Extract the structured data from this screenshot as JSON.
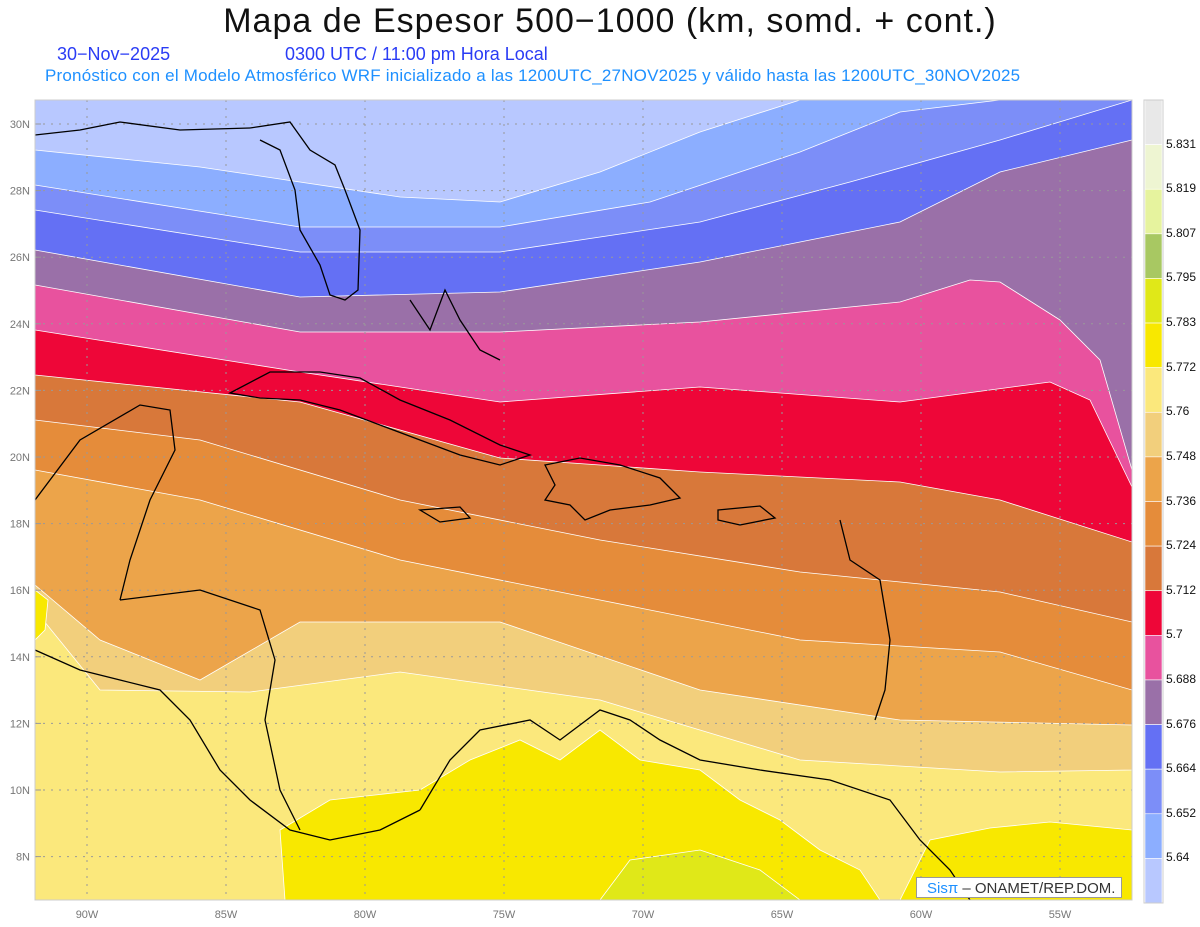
{
  "header": {
    "title": "Mapa de Espesor 500−1000 (km, somd. + cont.)",
    "date": "30−Nov−2025",
    "time": "0300 UTC / 11:00 pm Hora Local",
    "subtitle": "Pronóstico con el Modelo Atmosférico WRF inicializado a las 1200UTC_27NOV2025 y válido hasta las  1200UTC_30NOV2025"
  },
  "axes": {
    "lat_ticks": [
      {
        "v": 30,
        "label": "30N"
      },
      {
        "v": 28,
        "label": "28N"
      },
      {
        "v": 26,
        "label": "26N"
      },
      {
        "v": 24,
        "label": "24N"
      },
      {
        "v": 22,
        "label": "22N"
      },
      {
        "v": 20,
        "label": "20N"
      },
      {
        "v": 18,
        "label": "18N"
      },
      {
        "v": 16,
        "label": "16N"
      },
      {
        "v": 14,
        "label": "14N"
      },
      {
        "v": 12,
        "label": "12N"
      },
      {
        "v": 10,
        "label": "10N"
      },
      {
        "v": 8,
        "label": "8N"
      }
    ],
    "lon_ticks": [
      {
        "v": -90,
        "label": "90W"
      },
      {
        "v": -85,
        "label": "85W"
      },
      {
        "v": -80,
        "label": "80W"
      },
      {
        "v": -75,
        "label": "75W"
      },
      {
        "v": -70,
        "label": "70W"
      },
      {
        "v": -65,
        "label": "65W"
      },
      {
        "v": -60,
        "label": "60W"
      },
      {
        "v": -55,
        "label": "55W"
      }
    ]
  },
  "colorbar": {
    "labels": [
      "5.831",
      "5.819",
      "5.807",
      "5.795",
      "5.783",
      "5.772",
      "5.76",
      "5.748",
      "5.736",
      "5.724",
      "5.712",
      "5.7",
      "5.688",
      "5.676",
      "5.664",
      "5.652",
      "5.64"
    ],
    "colors": [
      "#e8e8e8",
      "#eef5d2",
      "#e6f39e",
      "#a8c862",
      "#e0e818",
      "#f8e800",
      "#fbe87c",
      "#f2cf7c",
      "#eca44a",
      "#e58c3a",
      "#d8783a",
      "#ee0638",
      "#e8529e",
      "#9a70a8",
      "#6470f4",
      "#7c8ef8",
      "#8caeff",
      "#b8c8ff"
    ]
  },
  "logo": {
    "brand": "Sisπ",
    "text": "– ONAMET/REP.DOM."
  }
}
